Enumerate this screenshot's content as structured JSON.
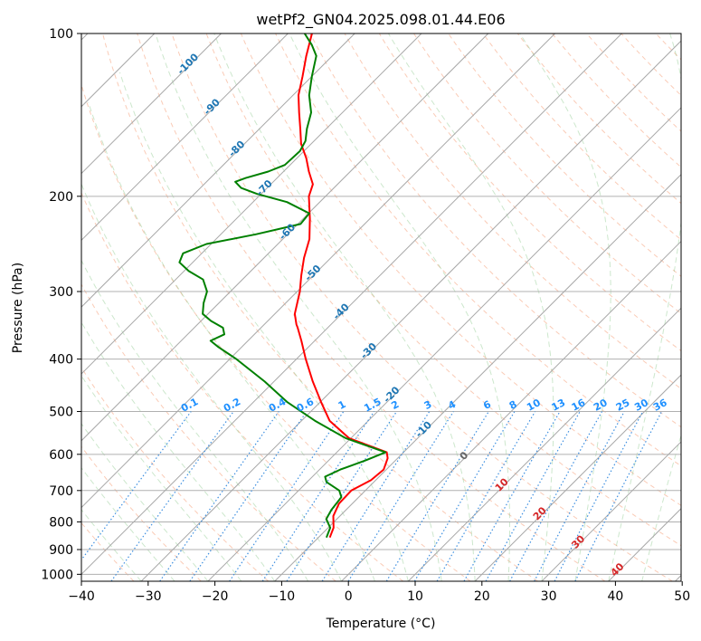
{
  "chart_data": {
    "type": "skew-t",
    "title": "wetPf2_GN04.2025.098.01.44.E06",
    "xlabel": "Temperature (°C)",
    "ylabel": "Pressure (hPa)",
    "xlim": [
      -40,
      50
    ],
    "ylim": [
      1030,
      100
    ],
    "y_scale": "log",
    "grid": true,
    "x_ticks": [
      "−40",
      "−30",
      "−20",
      "−10",
      "0",
      "10",
      "20",
      "30",
      "40",
      "50"
    ],
    "y_ticks": [
      "100",
      "200",
      "300",
      "400",
      "500",
      "600",
      "700",
      "800",
      "900",
      "1000"
    ],
    "y_tick_values": [
      100,
      200,
      300,
      400,
      500,
      600,
      700,
      800,
      900,
      1000
    ],
    "isotherm_values": [
      -100,
      -90,
      -80,
      -70,
      -60,
      -50,
      -40,
      -30,
      -20,
      -10,
      0,
      10,
      20,
      30,
      40
    ],
    "isotherm_labels": [
      "-100",
      "-90",
      "-80",
      "-70",
      "-60",
      "-50",
      "-40",
      "-30",
      "-20",
      "-10",
      "0",
      "10",
      "20",
      "30",
      "40"
    ],
    "mixing_ratio_values": [
      0.1,
      0.2,
      0.4,
      0.6,
      1,
      1.5,
      2,
      3,
      4,
      6,
      8,
      10,
      13,
      16,
      20,
      25,
      30,
      36
    ],
    "mixing_ratio_labels": [
      "0.1",
      "0.2",
      "0.4",
      "0.6",
      "1",
      "1.5",
      "2",
      "3",
      "4",
      "6",
      "8",
      "10",
      "13",
      "16",
      "20",
      "25",
      "30",
      "36"
    ],
    "series": [
      {
        "name": "",
        "color": "#ff0000",
        "points": [
          [
            855,
            -8.3
          ],
          [
            820,
            -9.2
          ],
          [
            780,
            -11.0
          ],
          [
            740,
            -12.0
          ],
          [
            700,
            -12.1
          ],
          [
            670,
            -10.7
          ],
          [
            640,
            -10.4
          ],
          [
            610,
            -11.5
          ],
          [
            595,
            -12.5
          ],
          [
            560,
            -20.3
          ],
          [
            520,
            -25.8
          ],
          [
            480,
            -29.9
          ],
          [
            440,
            -34.2
          ],
          [
            400,
            -38.6
          ],
          [
            370,
            -42.0
          ],
          [
            350,
            -44.5
          ],
          [
            345,
            -45.2
          ],
          [
            330,
            -47.0
          ],
          [
            300,
            -49.6
          ],
          [
            280,
            -51.8
          ],
          [
            260,
            -54.0
          ],
          [
            240,
            -56.0
          ],
          [
            220,
            -59.0
          ],
          [
            200,
            -62.5
          ],
          [
            190,
            -63.7
          ],
          [
            180,
            -66.2
          ],
          [
            170,
            -68.6
          ],
          [
            160,
            -71.5
          ],
          [
            150,
            -73.9
          ],
          [
            140,
            -76.5
          ],
          [
            130,
            -79.2
          ],
          [
            120,
            -81.4
          ],
          [
            110,
            -83.9
          ],
          [
            100,
            -86.4
          ]
        ]
      },
      {
        "name": "",
        "color": "#008000",
        "points": [
          [
            855,
            -8.8
          ],
          [
            820,
            -9.7
          ],
          [
            790,
            -11.6
          ],
          [
            760,
            -12.2
          ],
          [
            720,
            -12.6
          ],
          [
            700,
            -13.9
          ],
          [
            675,
            -17.1
          ],
          [
            660,
            -18.1
          ],
          [
            640,
            -16.9
          ],
          [
            615,
            -14.4
          ],
          [
            595,
            -12.7
          ],
          [
            560,
            -20.8
          ],
          [
            520,
            -28.0
          ],
          [
            480,
            -35.0
          ],
          [
            440,
            -41.4
          ],
          [
            400,
            -49.0
          ],
          [
            380,
            -53.5
          ],
          [
            370,
            -55.6
          ],
          [
            360,
            -54.5
          ],
          [
            350,
            -55.7
          ],
          [
            340,
            -58.5
          ],
          [
            330,
            -60.8
          ],
          [
            315,
            -62.3
          ],
          [
            300,
            -63.5
          ],
          [
            285,
            -65.9
          ],
          [
            275,
            -69.3
          ],
          [
            265,
            -72.0
          ],
          [
            255,
            -72.8
          ],
          [
            245,
            -70.7
          ],
          [
            235,
            -64.7
          ],
          [
            225,
            -59.6
          ],
          [
            215,
            -59.9
          ],
          [
            205,
            -64.9
          ],
          [
            198,
            -70.6
          ],
          [
            193,
            -73.9
          ],
          [
            188,
            -75.7
          ],
          [
            185,
            -74.7
          ],
          [
            180,
            -72.3
          ],
          [
            175,
            -70.8
          ],
          [
            165,
            -70.6
          ],
          [
            158,
            -71.3
          ],
          [
            150,
            -72.9
          ],
          [
            140,
            -74.7
          ],
          [
            130,
            -77.6
          ],
          [
            120,
            -80.0
          ],
          [
            110,
            -82.4
          ],
          [
            105,
            -84.7
          ],
          [
            100,
            -87.5
          ]
        ]
      }
    ]
  }
}
